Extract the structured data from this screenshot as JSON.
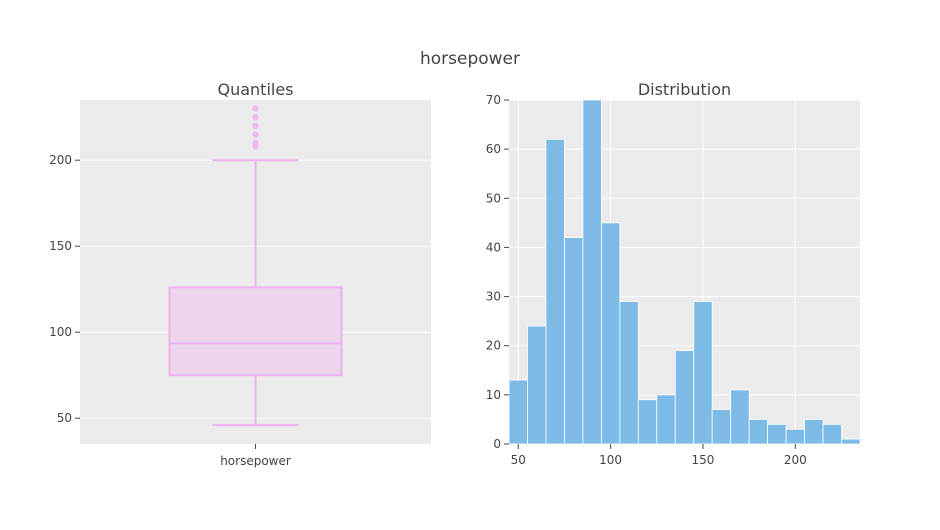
{
  "title": "horsepower",
  "colors": {
    "background": "#ffffff",
    "plot_bg": "#ebebeb",
    "grid": "#ffffff",
    "text": "#444444",
    "box_fill": "#edd5ec",
    "box_line": "#eeb0ee",
    "bar_fill": "#7cbbe6",
    "bar_line": "#ffffff"
  },
  "chart_data": [
    {
      "type": "box",
      "title": "Quantiles",
      "category": "horsepower",
      "ylim": [
        35,
        235
      ],
      "y_ticks": [
        50,
        100,
        150,
        200
      ],
      "stats": {
        "lower_whisker": 46,
        "q1": 75,
        "median": 93.5,
        "q3": 126,
        "upper_whisker": 200
      },
      "outliers": [
        208,
        210,
        215,
        220,
        225,
        230
      ]
    },
    {
      "type": "bar",
      "title": "Distribution",
      "bin_width": 10,
      "bin_start": 45,
      "xlim": [
        45,
        235
      ],
      "ylim": [
        0,
        70
      ],
      "x_ticks": [
        50,
        100,
        150,
        200
      ],
      "y_ticks": [
        0,
        10,
        20,
        30,
        40,
        50,
        60,
        70
      ],
      "values": [
        13,
        24,
        62,
        42,
        70,
        45,
        29,
        9,
        10,
        19,
        29,
        7,
        11,
        5,
        4,
        3,
        5,
        4,
        1
      ]
    }
  ]
}
